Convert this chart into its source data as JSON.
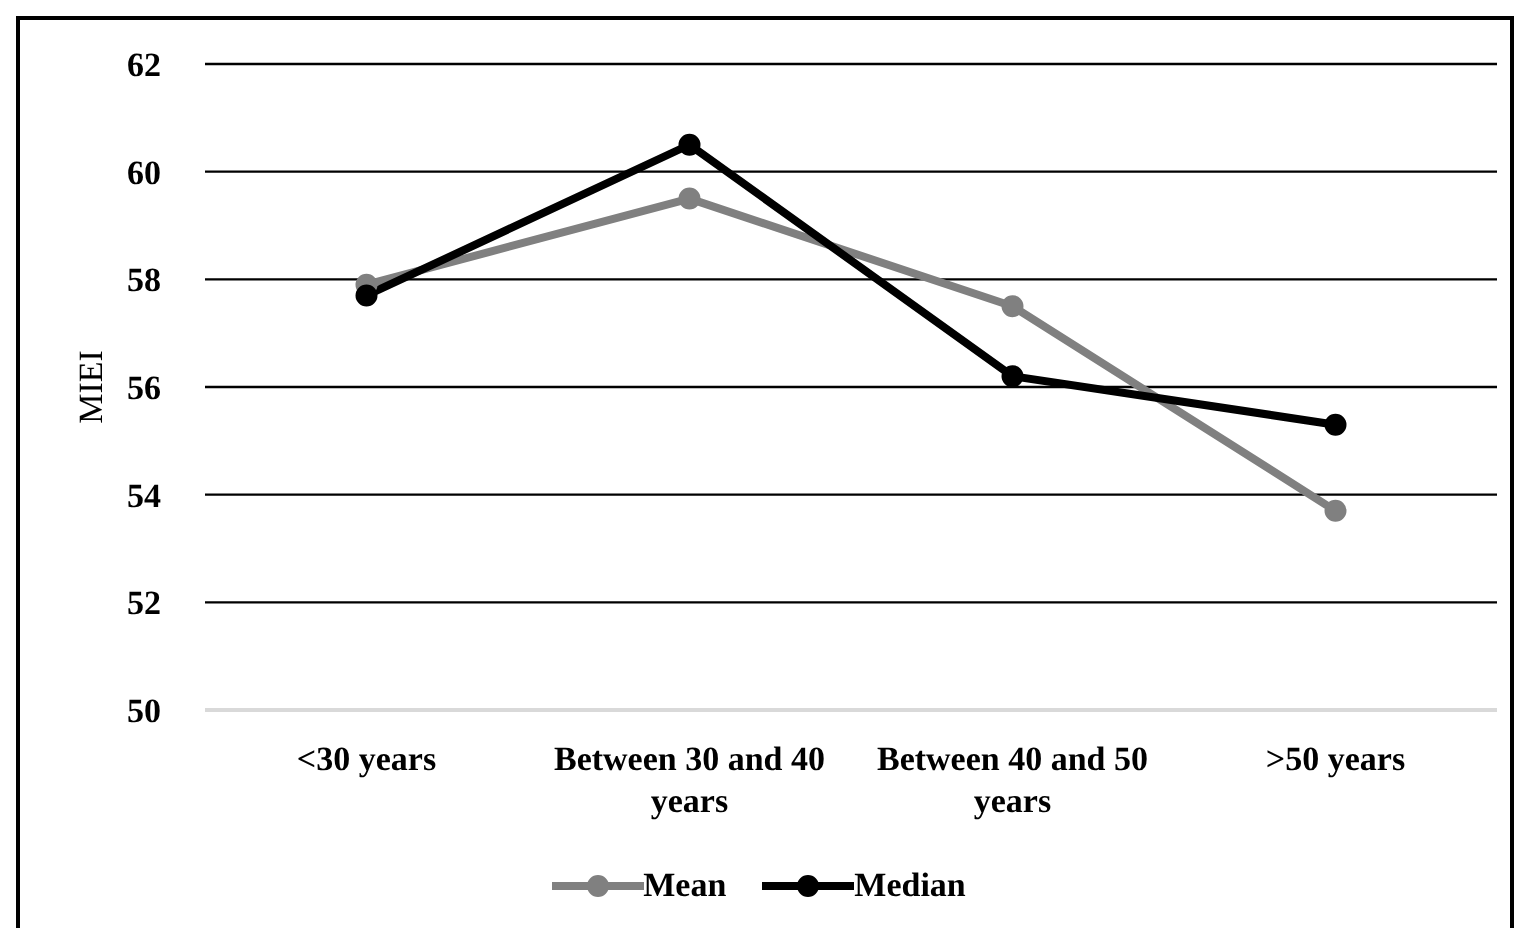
{
  "chart_data": {
    "type": "line",
    "ylabel": "MIEI",
    "categories": [
      "<30 years",
      "Between 30 and 40 years",
      "Between 40 and 50 years",
      ">50 years"
    ],
    "series": [
      {
        "name": "Mean",
        "color": "#808080",
        "values": [
          57.9,
          59.5,
          57.5,
          53.7
        ]
      },
      {
        "name": "Median",
        "color": "#000000",
        "values": [
          57.7,
          60.5,
          56.2,
          55.3
        ]
      }
    ],
    "ylim": [
      50,
      62
    ],
    "yticks": [
      50,
      52,
      54,
      56,
      58,
      60,
      62
    ],
    "grid": "y",
    "legend": "bottom",
    "marker": "circle",
    "line_style": "solid"
  }
}
